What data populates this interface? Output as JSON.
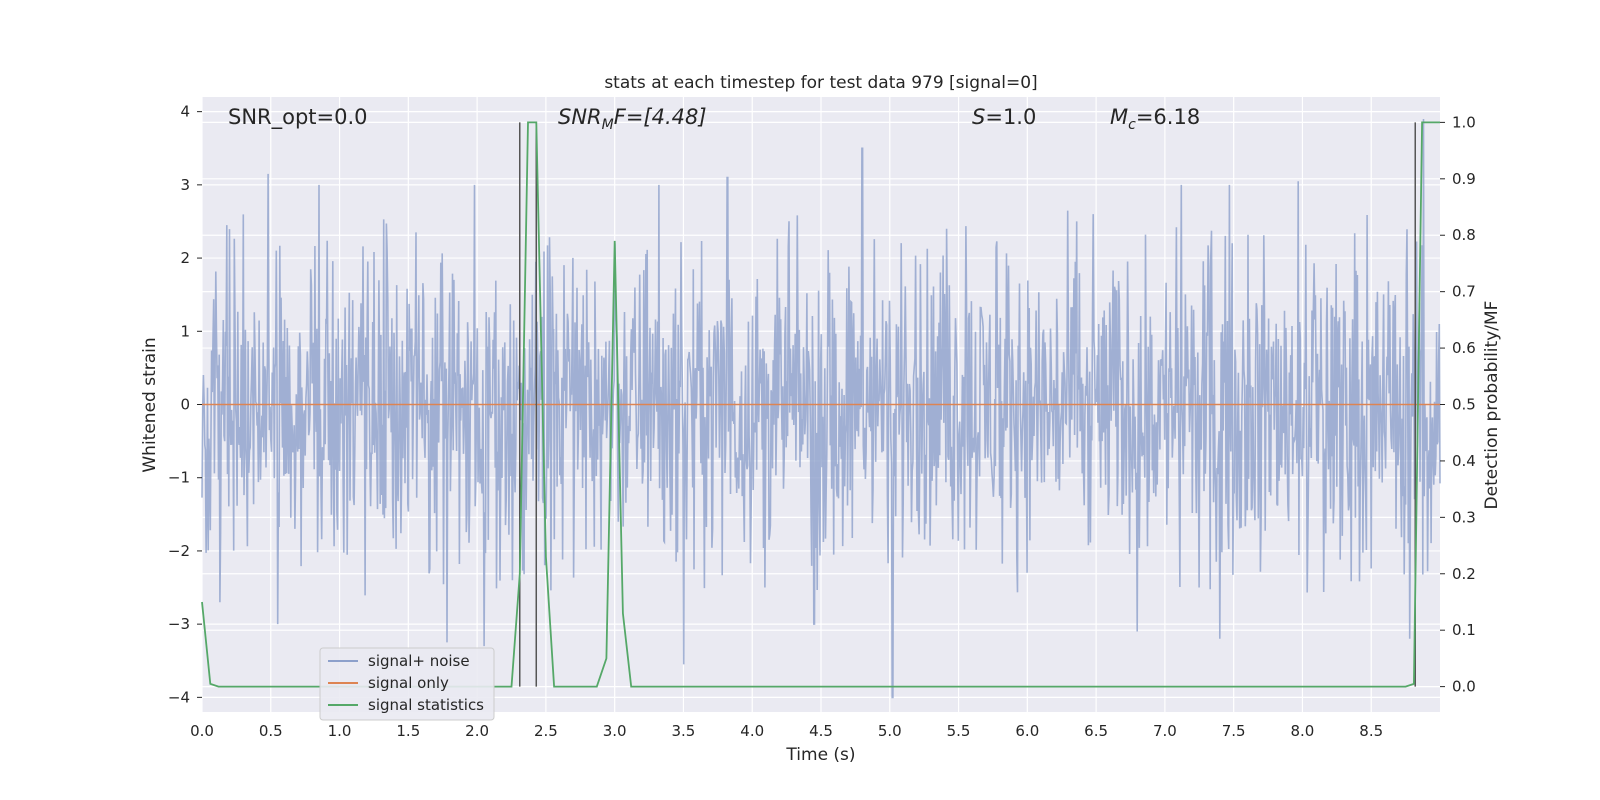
{
  "chart_data": {
    "type": "line",
    "title": "stats at each timestep for test data 979 [signal=0]",
    "xlabel": "Time (s)",
    "ylabel": "Whitened strain",
    "y2label": "Detection probability/MF",
    "xlim": [
      0.0,
      9.0
    ],
    "ylim": [
      -4.2,
      4.2
    ],
    "y2lim": [
      -0.045,
      1.045
    ],
    "xticks": [
      "0.0",
      "0.5",
      "1.0",
      "1.5",
      "2.0",
      "2.5",
      "3.0",
      "3.5",
      "4.0",
      "4.5",
      "5.0",
      "5.5",
      "6.0",
      "6.5",
      "7.0",
      "7.5",
      "8.0",
      "8.5"
    ],
    "yticks": [
      "4",
      "3",
      "2",
      "1",
      "0",
      "−1",
      "−2",
      "−3",
      "−4"
    ],
    "y2ticks": [
      "1.0",
      "0.9",
      "0.8",
      "0.7",
      "0.6",
      "0.5",
      "0.4",
      "0.3",
      "0.2",
      "0.1",
      "0.0"
    ],
    "grid": true,
    "legend_position": "lower-left",
    "annotations": {
      "snr_opt": "SNR_opt=0.0",
      "snr_mf_label": "SNR",
      "snr_mf_sub": "M",
      "snr_mf_rest": "F=[4.48]",
      "s_label": "S",
      "s_rest": "=1.0",
      "mc_label": "M",
      "mc_sub": "c",
      "mc_rest": "=6.18"
    },
    "series": [
      {
        "name": "signal+ noise",
        "color": "#8da0cb",
        "description_kind": "noise_band",
        "band_typical": [
          -1.7,
          1.7
        ],
        "peaks_high": [
          [
            0.48,
            3.15
          ],
          [
            0.85,
            3.0
          ],
          [
            1.98,
            3.0
          ],
          [
            3.0,
            2.2
          ],
          [
            3.32,
            3.0
          ],
          [
            3.82,
            3.1
          ],
          [
            4.8,
            3.5
          ],
          [
            6.48,
            2.6
          ],
          [
            7.12,
            3.0
          ],
          [
            7.47,
            3.0
          ],
          [
            7.97,
            3.05
          ],
          [
            8.88,
            3.9
          ]
        ],
        "peaks_low": [
          [
            0.13,
            -2.7
          ],
          [
            0.55,
            -3.0
          ],
          [
            1.78,
            -3.25
          ],
          [
            2.05,
            -3.3
          ],
          [
            3.5,
            -3.55
          ],
          [
            4.45,
            -3.0
          ],
          [
            5.02,
            -4.0
          ],
          [
            6.8,
            -3.1
          ],
          [
            7.4,
            -3.2
          ],
          [
            8.78,
            -3.2
          ]
        ]
      },
      {
        "name": "signal only",
        "color": "#dd8452",
        "x": [
          0.0,
          9.0
        ],
        "y": [
          0.0,
          0.0
        ]
      },
      {
        "name": "signal statistics",
        "color": "#55a868",
        "axis": "right",
        "x": [
          0.0,
          0.06,
          0.12,
          2.25,
          2.31,
          2.37,
          2.43,
          2.5,
          2.56,
          2.87,
          2.94,
          3.0,
          3.06,
          3.12,
          3.19,
          8.75,
          8.81,
          8.87,
          8.93,
          9.0
        ],
        "y": [
          0.15,
          0.005,
          0.0,
          0.0,
          0.2,
          1.0,
          1.0,
          0.23,
          0.0,
          0.0,
          0.05,
          0.79,
          0.13,
          0.0,
          0.0,
          0.0,
          0.005,
          1.0,
          1.0,
          1.0
        ]
      }
    ],
    "vlines": [
      2.31,
      2.43,
      8.82
    ]
  },
  "colors": {
    "plot_bg": "#eaeaf2",
    "grid": "#ffffff",
    "vline": "#555555"
  }
}
